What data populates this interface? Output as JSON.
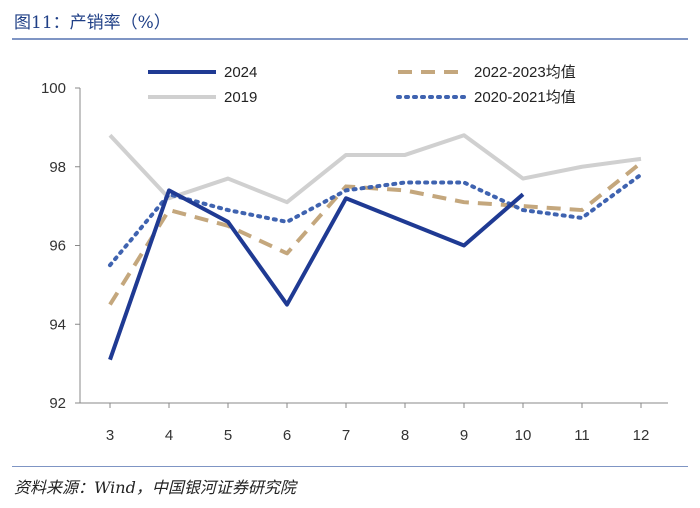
{
  "header": {
    "title": "图11：产销率（%）"
  },
  "footer": {
    "source": "资料来源：Wind，中国银河证券研究院"
  },
  "chart_data": {
    "type": "line",
    "title": "图11：产销率（%）",
    "xlabel": "",
    "ylabel": "",
    "categories": [
      "3",
      "4",
      "5",
      "6",
      "7",
      "8",
      "9",
      "10",
      "11",
      "12"
    ],
    "ylim": [
      92,
      100
    ],
    "yticks": [
      92,
      94,
      96,
      98,
      100
    ],
    "series": [
      {
        "name": "2024",
        "color": "#1f3a93",
        "style": "solid",
        "values": [
          93.1,
          97.4,
          96.6,
          94.5,
          97.2,
          96.6,
          96.0,
          97.3,
          null,
          null
        ]
      },
      {
        "name": "2019",
        "color": "#d0d0d0",
        "style": "solid",
        "values": [
          98.8,
          97.2,
          97.7,
          97.1,
          98.3,
          98.3,
          98.8,
          97.7,
          98.0,
          98.2
        ]
      },
      {
        "name": "2022-2023均值",
        "color": "#c4a77d",
        "style": "dashed",
        "values": [
          94.5,
          96.9,
          96.5,
          95.8,
          97.5,
          97.4,
          97.1,
          97.0,
          96.9,
          98.1
        ]
      },
      {
        "name": "2020-2021均值",
        "color": "#3f63b0",
        "style": "dotted",
        "values": [
          95.5,
          97.3,
          96.9,
          96.6,
          97.4,
          97.6,
          97.6,
          96.9,
          96.7,
          97.8
        ]
      }
    ],
    "legend": "top"
  }
}
